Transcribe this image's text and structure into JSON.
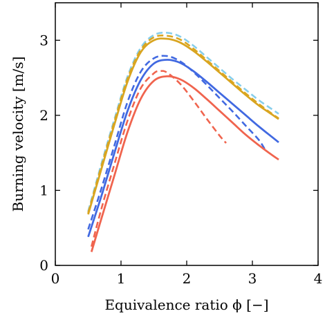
{
  "chart_data": {
    "type": "line",
    "title": "",
    "xlabel": "Equivalence ratio ϕ [−]",
    "ylabel": "Burning velocity [m/s]",
    "xlim": [
      0,
      4
    ],
    "ylim": [
      0,
      3.5
    ],
    "xticks": [
      0,
      1,
      2,
      3,
      4
    ],
    "xtick_labels": [
      "0",
      "1",
      "2",
      "3",
      "4"
    ],
    "yticks": [
      0,
      1,
      2,
      3
    ],
    "ytick_labels": [
      "0",
      "1",
      "2",
      "3"
    ],
    "grid": false,
    "legend": "none",
    "series": [
      {
        "color": "#87ceeb",
        "style": "dashed",
        "x": [
          0.5,
          0.7,
          0.9,
          1.1,
          1.3,
          1.5,
          1.7,
          1.9,
          2.1,
          2.3,
          2.5,
          2.7,
          2.9,
          3.1,
          3.3,
          3.4
        ],
        "y": [
          0.72,
          1.35,
          1.95,
          2.52,
          2.9,
          3.07,
          3.1,
          3.05,
          2.93,
          2.78,
          2.63,
          2.48,
          2.34,
          2.2,
          2.08,
          2.02
        ]
      },
      {
        "color": "#d9a520",
        "style": "dashed",
        "x": [
          0.5,
          0.7,
          0.9,
          1.1,
          1.3,
          1.5,
          1.7,
          1.9,
          2.1,
          2.3,
          2.5,
          2.7,
          2.9,
          3.1,
          3.3,
          3.4
        ],
        "y": [
          0.7,
          1.32,
          1.92,
          2.49,
          2.87,
          3.04,
          3.06,
          3.01,
          2.89,
          2.74,
          2.59,
          2.44,
          2.29,
          2.15,
          2.02,
          1.96
        ]
      },
      {
        "color": "#d9a520",
        "style": "solid",
        "x": [
          0.5,
          0.7,
          0.9,
          1.1,
          1.3,
          1.5,
          1.7,
          1.9,
          2.1,
          2.3,
          2.5,
          2.7,
          2.9,
          3.1,
          3.3,
          3.4
        ],
        "y": [
          0.68,
          1.28,
          1.88,
          2.45,
          2.84,
          3.0,
          3.02,
          2.97,
          2.86,
          2.72,
          2.57,
          2.42,
          2.27,
          2.13,
          2.01,
          1.95
        ]
      },
      {
        "color": "#4169e1",
        "style": "dashed",
        "x": [
          0.5,
          0.7,
          0.9,
          1.1,
          1.3,
          1.5,
          1.7,
          1.9,
          2.1,
          2.3,
          2.5,
          2.7,
          2.9,
          3.1,
          3.2
        ],
        "y": [
          0.48,
          1.02,
          1.6,
          2.18,
          2.58,
          2.76,
          2.79,
          2.72,
          2.58,
          2.41,
          2.23,
          2.05,
          1.86,
          1.67,
          1.53
        ]
      },
      {
        "color": "#4169e1",
        "style": "solid",
        "x": [
          0.5,
          0.7,
          0.9,
          1.1,
          1.3,
          1.5,
          1.7,
          1.9,
          2.1,
          2.3,
          2.5,
          2.7,
          2.9,
          3.1,
          3.3,
          3.4
        ],
        "y": [
          0.38,
          0.92,
          1.5,
          2.06,
          2.47,
          2.69,
          2.74,
          2.7,
          2.59,
          2.45,
          2.3,
          2.15,
          2.0,
          1.85,
          1.71,
          1.64
        ]
      },
      {
        "color": "#f0644e",
        "style": "dashed",
        "x": [
          0.55,
          0.7,
          0.9,
          1.1,
          1.3,
          1.5,
          1.6,
          1.7,
          1.9,
          2.1,
          2.3,
          2.5,
          2.6
        ],
        "y": [
          0.25,
          0.75,
          1.35,
          1.93,
          2.36,
          2.56,
          2.59,
          2.57,
          2.42,
          2.2,
          1.96,
          1.73,
          1.63
        ]
      },
      {
        "color": "#f0644e",
        "style": "solid",
        "x": [
          0.55,
          0.7,
          0.9,
          1.1,
          1.3,
          1.5,
          1.7,
          1.9,
          2.1,
          2.3,
          2.5,
          2.7,
          2.9,
          3.1,
          3.3,
          3.4
        ],
        "y": [
          0.18,
          0.62,
          1.2,
          1.78,
          2.22,
          2.46,
          2.52,
          2.48,
          2.37,
          2.22,
          2.06,
          1.9,
          1.74,
          1.6,
          1.47,
          1.41
        ]
      }
    ]
  }
}
